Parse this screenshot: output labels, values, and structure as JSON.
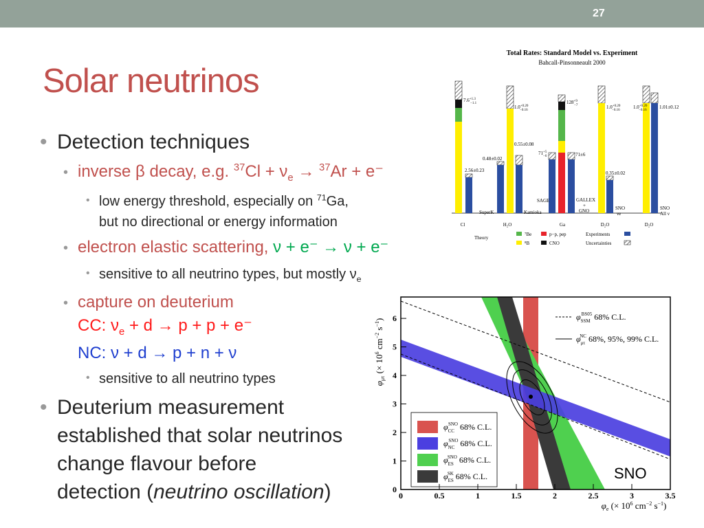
{
  "header": {
    "slide_number": "27"
  },
  "title": "Solar neutrinos",
  "bullets": [
    {
      "parts": [
        "Detection techniques"
      ]
    },
    {
      "parts": [
        "inverse β decay, e.g. ",
        "37",
        "Cl + ν",
        "e",
        " → ",
        "37",
        "Ar + e⁻"
      ]
    },
    {
      "parts": [
        "low energy threshold, especially on ",
        "71",
        "Ga,",
        "but no directional or energy information"
      ]
    },
    {
      "parts": [
        "electron elastic scattering, ",
        "ν + e⁻ → ν + e⁻"
      ]
    },
    {
      "parts": [
        "sensitive to all neutrino types, but mostly ν",
        "e"
      ]
    },
    {
      "parts": [
        "capture on deuterium",
        "CC: ν",
        "e",
        " + d → p + p + e⁻",
        "NC: ν + d → p + n + ν"
      ]
    },
    {
      "parts": [
        "sensitive to all neutrino types"
      ]
    },
    {
      "parts": [
        "Deuterium measurement",
        "established that solar neutrinos",
        "change flavour before",
        "detection (",
        "neutrino oscillation",
        ")"
      ]
    }
  ],
  "figure_rates": {
    "title": "Total Rates: Standard Model vs. Experiment",
    "subtitle": "Bahcall-Pinsonneault 2000",
    "x_labels": [
      "Cl",
      "H₂O",
      "Ga",
      "D₂O",
      "D₂O"
    ],
    "asym_labels": [
      {
        "value": "7.6",
        "plus": "+1.3",
        "minus": "−1.1"
      },
      {
        "value": "1.0",
        "plus": "+0.20",
        "minus": "−0.16"
      },
      {
        "value": "71",
        "plus": "+5",
        "minus": "−6"
      },
      {
        "value": "128",
        "plus": "+9",
        "minus": "−7"
      },
      {
        "value": "1.0",
        "plus": "+0.20",
        "minus": "−0.16"
      },
      {
        "value": "1.0",
        "plus": "+0.20",
        "minus": "−0.16"
      }
    ],
    "simple_labels": [
      "2.56±0.23",
      "0.48±0.02",
      "0.55±0.08",
      "71±6",
      "0.35±0.02",
      "1.01±0.12"
    ],
    "experiment_labels": [
      [
        "SuperK"
      ],
      [
        "Kamioka"
      ],
      [
        "SAGE"
      ],
      [
        "GALLEX",
        "+",
        "GNO"
      ],
      [
        "SNO",
        "νe"
      ],
      [
        "SNO",
        "All ν"
      ]
    ],
    "legend": {
      "theory": "Theory",
      "items": [
        "⁷Be",
        "p−p, pep",
        "⁸B",
        "CNO",
        "Experiments",
        "Uncertainties"
      ]
    }
  },
  "figure_sno": {
    "x_label": [
      "φ",
      "e",
      " (× 10",
      "6",
      " cm",
      "−2",
      " s",
      "−1",
      ")"
    ],
    "y_label": [
      "φ",
      "μτ",
      " (× 10",
      "6",
      " cm",
      "−2",
      " s",
      "−1",
      ")"
    ],
    "xlim": [
      0,
      3.5
    ],
    "ylim": [
      0,
      6.75
    ],
    "xticks": [
      0,
      0.5,
      1,
      1.5,
      2,
      2.5,
      3,
      3.5
    ],
    "yticks": [
      0,
      1,
      2,
      3,
      4,
      5,
      6
    ],
    "legend_lines": [
      [
        "φ",
        "SSM",
        "BS05",
        " 68% C.L."
      ],
      [
        "φ",
        "μτ",
        "NC",
        " 68%, 95%, 99% C.L."
      ]
    ],
    "legend_boxes": [
      [
        "φ",
        "CC",
        "SNO",
        " 68% C.L."
      ],
      [
        "φ",
        "NC",
        "SNO",
        " 68% C.L."
      ],
      [
        "φ",
        "ES",
        "SNO",
        " 68% C.L."
      ],
      [
        "φ",
        "ES",
        "SK",
        " 68% C.L."
      ]
    ],
    "label": "SNO"
  }
}
